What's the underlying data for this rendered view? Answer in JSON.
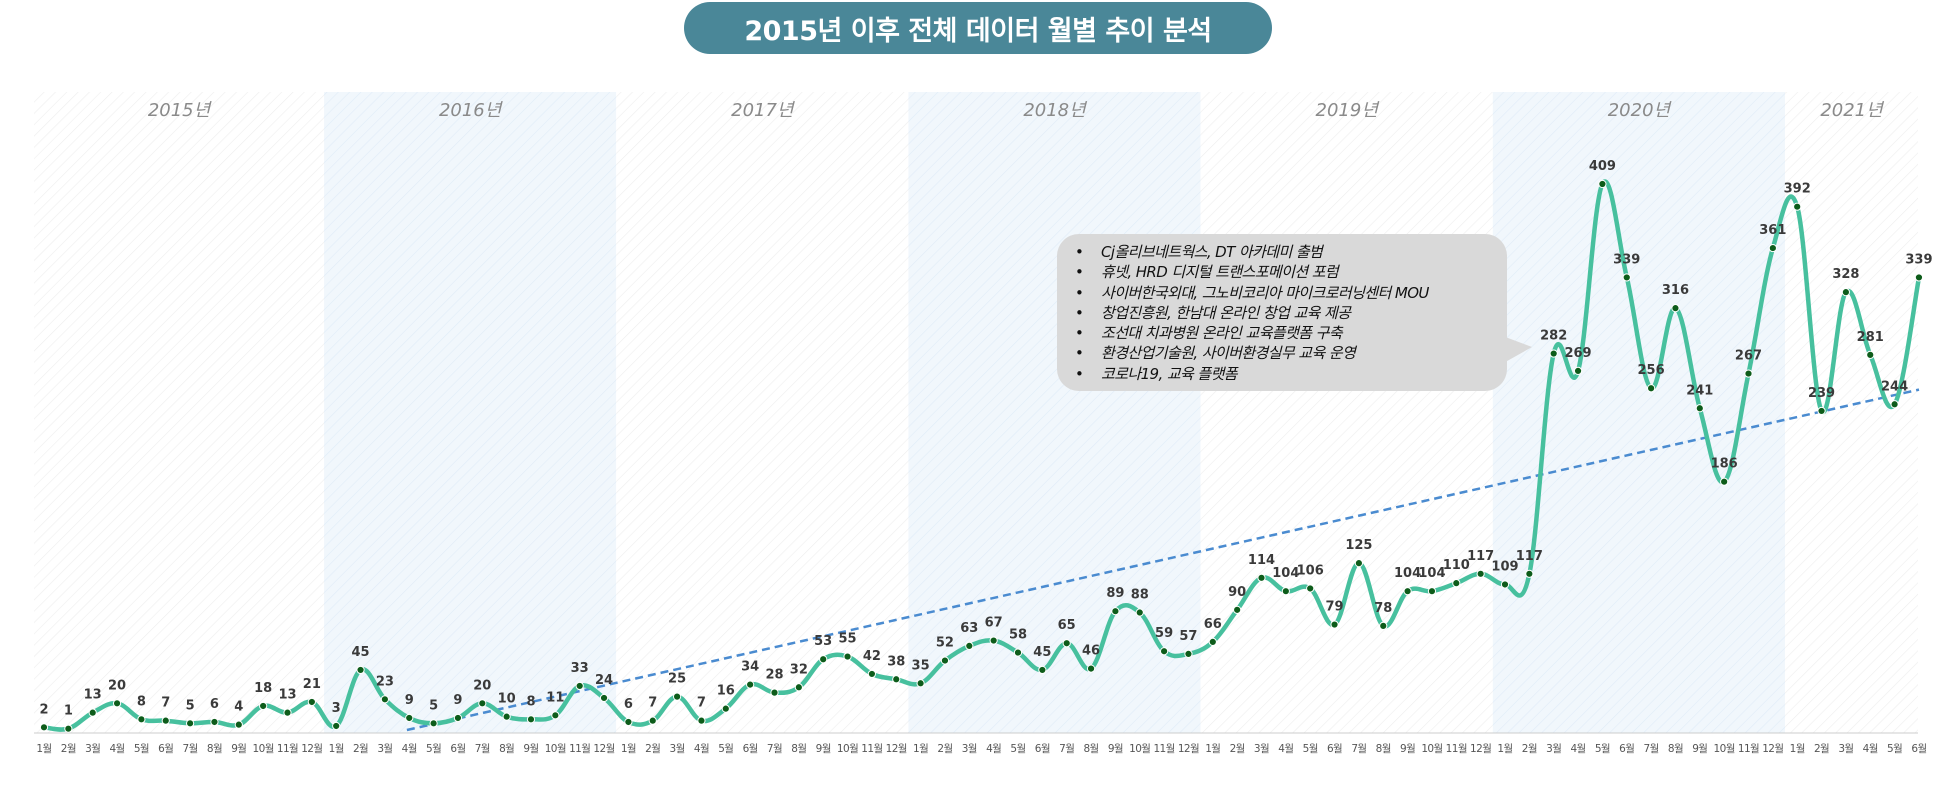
{
  "title": "2015년 이후 전체 데이터 월별 추이 분석",
  "annotations": [
    "Cj올리브네트웍스, DT 아카데미 출범",
    "휴넷, HRD 디지털 트랜스포메이션 포럼",
    "사이버한국외대, 그노비코리아 마이크로러닝센터 MOU",
    "창업진흥원, 한남대 온라인 창업 교육 제공",
    "조선대 치과병원 온라인 교육플랫폼 구축",
    "환경산업기술원, 사이버환경실무 교육 운영",
    "코로나19, 교육 플랫폼"
  ],
  "chart_data": {
    "type": "line",
    "title": "2015년 이후 전체 데이터 월별 추이 분석",
    "xlabel": "",
    "ylabel": "",
    "ylim": [
      0,
      420
    ],
    "grid": false,
    "years": [
      {
        "label": "2015년",
        "months": 12
      },
      {
        "label": "2016년",
        "months": 12
      },
      {
        "label": "2017년",
        "months": 12
      },
      {
        "label": "2018년",
        "months": 12
      },
      {
        "label": "2019년",
        "months": 12
      },
      {
        "label": "2020년",
        "months": 12
      },
      {
        "label": "2021년",
        "months": 6
      }
    ],
    "categories": [
      "1월",
      "2월",
      "3월",
      "4월",
      "5월",
      "6월",
      "7월",
      "8월",
      "9월",
      "10월",
      "11월",
      "12월",
      "1월",
      "2월",
      "3월",
      "4월",
      "5월",
      "6월",
      "7월",
      "8월",
      "9월",
      "10월",
      "11월",
      "12월",
      "1월",
      "2월",
      "3월",
      "4월",
      "5월",
      "6월",
      "7월",
      "8월",
      "9월",
      "10월",
      "11월",
      "12월",
      "1월",
      "2월",
      "3월",
      "4월",
      "5월",
      "6월",
      "7월",
      "8월",
      "9월",
      "10월",
      "11월",
      "12월",
      "1월",
      "2월",
      "3월",
      "4월",
      "5월",
      "6월",
      "7월",
      "8월",
      "9월",
      "10월",
      "11월",
      "12월",
      "1월",
      "2월",
      "3월",
      "4월",
      "5월",
      "6월",
      "7월",
      "8월",
      "9월",
      "10월",
      "11월",
      "12월",
      "1월",
      "2월",
      "3월",
      "4월",
      "5월",
      "6월"
    ],
    "values": [
      2,
      1,
      13,
      20,
      8,
      7,
      5,
      6,
      4,
      18,
      13,
      21,
      3,
      45,
      23,
      9,
      5,
      9,
      20,
      10,
      8,
      11,
      33,
      24,
      6,
      7,
      25,
      7,
      16,
      34,
      28,
      32,
      53,
      55,
      42,
      38,
      35,
      52,
      63,
      67,
      58,
      45,
      65,
      46,
      89,
      88,
      59,
      57,
      66,
      90,
      114,
      104,
      106,
      79,
      125,
      78,
      104,
      104,
      110,
      117,
      109,
      117,
      282,
      269,
      409,
      339,
      256,
      316,
      241,
      186,
      267,
      361,
      392,
      239,
      328,
      281,
      244,
      339
    ],
    "trendline": {
      "style": "dashed",
      "type": "linear"
    },
    "colors": {
      "line": "#47c09e",
      "marker": "#0d5c1a",
      "trend": "#4a8bd0",
      "title_bg": "#4a8798",
      "callout_bg": "#d9d9d9"
    }
  }
}
